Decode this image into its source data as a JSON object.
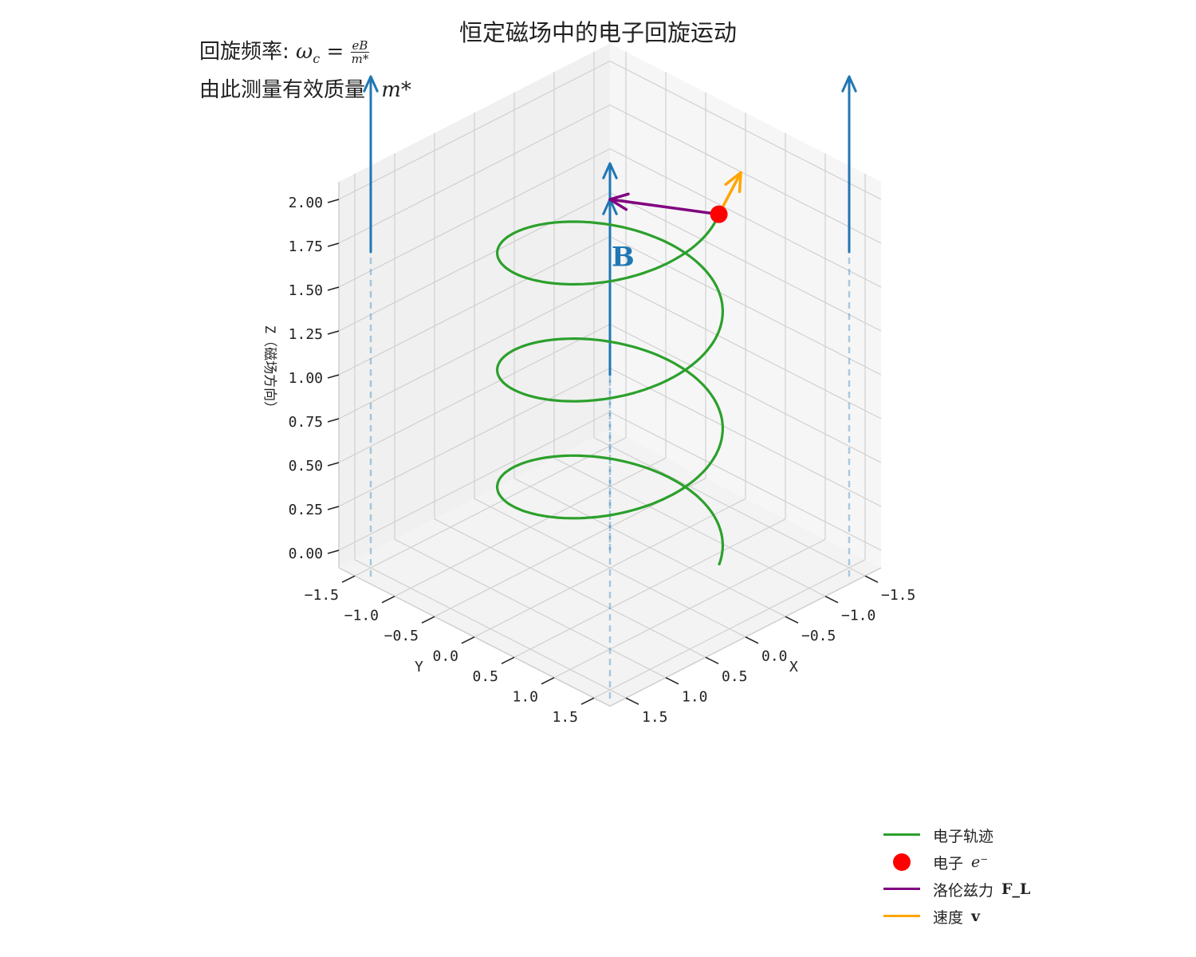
{
  "title": "恒定磁场中的电子回旋运动",
  "annotation": {
    "line1_prefix": "回旋频率:",
    "line1_formula": "ω",
    "line1_sub": "c",
    "line1_eq": "=",
    "line1_num": "eB",
    "line1_den": "m*",
    "line2_prefix": "由此测量有效质量",
    "line2_formula": "m*"
  },
  "colors": {
    "trajectory": "#2ca02c",
    "electron": "#ff0000",
    "force": "#800080",
    "velocity": "#ffa500",
    "field": "#1f77b4",
    "pane": "#f2f2f2",
    "grid": "#d0d0d0"
  },
  "legend": {
    "items": [
      {
        "label": "电子轨迹",
        "math": "",
        "kind": "line",
        "color": "#2ca02c"
      },
      {
        "label": "电子",
        "math": "e⁻",
        "kind": "dot",
        "color": "#ff0000"
      },
      {
        "label": "洛伦兹力",
        "math": "F_L",
        "kind": "line",
        "color": "#800080"
      },
      {
        "label": "速度",
        "math": "v",
        "kind": "line",
        "color": "#ffa500"
      }
    ]
  },
  "chart_data": {
    "type": "line3d",
    "axes": {
      "xlabel": "X",
      "ylabel": "Y",
      "zlabel": "Z（磁场方向）",
      "xlim": [
        -1.7,
        1.7
      ],
      "ylim": [
        -1.7,
        1.7
      ],
      "zlim": [
        -0.1,
        2.1
      ],
      "xticks": [
        "−1.5",
        "−1.0",
        "−0.5",
        "0.0",
        "0.5",
        "1.0",
        "1.5"
      ],
      "xtick_values": [
        -1.5,
        -1.0,
        -0.5,
        0.0,
        0.5,
        1.0,
        1.5
      ],
      "yticks": [
        "−1.5",
        "−1.0",
        "−0.5",
        "0.0",
        "0.5",
        "1.0",
        "1.5"
      ],
      "ytick_values": [
        -1.5,
        -1.0,
        -0.5,
        0.0,
        0.5,
        1.0,
        1.5
      ],
      "zticks": [
        "0.00",
        "0.25",
        "0.50",
        "0.75",
        "1.00",
        "1.25",
        "1.50",
        "1.75",
        "2.00"
      ],
      "ztick_values": [
        0,
        0.25,
        0.5,
        0.75,
        1.0,
        1.25,
        1.5,
        1.75,
        2.0
      ],
      "grid": true
    },
    "series": [
      {
        "name": "电子轨迹",
        "kind": "helix",
        "radius": 1.0,
        "z_start": 0.0,
        "z_end": 2.0,
        "turns": 3,
        "phase_start_deg": 120,
        "phase_end_deg": 1200
      }
    ],
    "electron": {
      "x": -0.5,
      "y": 0.866,
      "z": 2.0
    },
    "velocity_vector": {
      "dx": -0.65,
      "dy": -0.375,
      "dz": 0.0
    },
    "force_vector": {
      "dx": 0.5,
      "dy": -0.866,
      "dz": 0.0
    },
    "field_arrows": [
      {
        "x": 0.0,
        "y": 0.0,
        "z_start": 1.0,
        "length": 1.0,
        "dashed_to": 0.0
      },
      {
        "x": 1.5,
        "y": -1.5,
        "z_start": 1.7,
        "length": 1.0,
        "dashed_to": -0.15
      },
      {
        "x": -1.5,
        "y": 1.5,
        "z_start": 1.7,
        "length": 1.0,
        "dashed_to": -0.15
      },
      {
        "x": 1.5,
        "y": 1.5,
        "z_start": 2.0,
        "length": 0.9,
        "dashed_to": -0.15
      }
    ],
    "field_label": "B"
  }
}
